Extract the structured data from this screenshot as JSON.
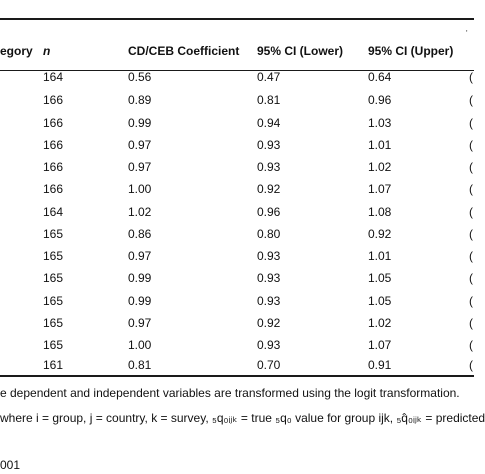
{
  "header": {
    "category": "egory",
    "n": "n",
    "coefficient": "CD/CEB Coefficient",
    "ci_lower": "95% CI (Lower)",
    "ci_upper": "95% CI (Upper)",
    "cut": "'"
  },
  "rows": [
    {
      "n": "164",
      "coef": "0.56",
      "lo": "0.47",
      "up": "0.64",
      "cut": "("
    },
    {
      "n": "166",
      "coef": "0.89",
      "lo": "0.81",
      "up": "0.96",
      "cut": "("
    },
    {
      "n": "166",
      "coef": "0.99",
      "lo": "0.94",
      "up": "1.03",
      "cut": "("
    },
    {
      "n": "166",
      "coef": "0.97",
      "lo": "0.93",
      "up": "1.01",
      "cut": "("
    },
    {
      "n": "166",
      "coef": "0.97",
      "lo": "0.93",
      "up": "1.02",
      "cut": "("
    },
    {
      "n": "166",
      "coef": "1.00",
      "lo": "0.92",
      "up": "1.07",
      "cut": "("
    },
    {
      "n": "164",
      "coef": "1.02",
      "lo": "0.96",
      "up": "1.08",
      "cut": "("
    },
    {
      "n": "165",
      "coef": "0.86",
      "lo": "0.80",
      "up": "0.92",
      "cut": "("
    },
    {
      "n": "165",
      "coef": "0.97",
      "lo": "0.93",
      "up": "1.01",
      "cut": "("
    },
    {
      "n": "165",
      "coef": "0.99",
      "lo": "0.93",
      "up": "1.05",
      "cut": "("
    },
    {
      "n": "165",
      "coef": "0.99",
      "lo": "0.93",
      "up": "1.05",
      "cut": "("
    },
    {
      "n": "165",
      "coef": "0.97",
      "lo": "0.92",
      "up": "1.02",
      "cut": "("
    },
    {
      "n": "165",
      "coef": "1.00",
      "lo": "0.93",
      "up": "1.07",
      "cut": "("
    },
    {
      "n": "161",
      "coef": "0.81",
      "lo": "0.70",
      "up": "0.91",
      "cut": "("
    }
  ],
  "notes": {
    "note1": "e dependent and independent variables are transformed using the logit transformation.",
    "note2": "where i = group, j = country, k = survey, ₅q₀ᵢⱼₖ = true ₅q₀ value for group ijk, ₅q̂₀ᵢⱼₖ = predicted",
    "footer": "001"
  }
}
